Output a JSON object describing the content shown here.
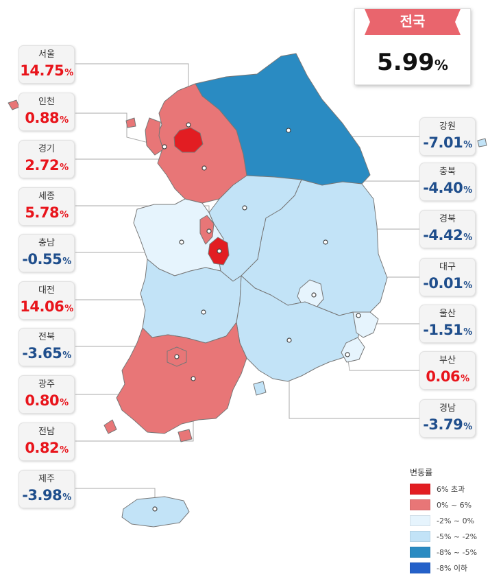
{
  "national": {
    "label": "전국",
    "value": "5.99",
    "unit": "%"
  },
  "colors": {
    "over6": "#e21d22",
    "p0to6": "#e87677",
    "m2to0": "#e6f4fd",
    "m5tom2": "#c2e3f7",
    "m8tom5": "#2a8bc2",
    "under8": "#2461c9",
    "positive_text": "#e8141b",
    "negative_text": "#1f4e8c",
    "ribbon": "#e9656d"
  },
  "regions": [
    {
      "id": "seoul",
      "name": "서울",
      "value": "14.75",
      "unit": "%",
      "sign": "pos"
    },
    {
      "id": "incheon",
      "name": "인천",
      "value": "0.88",
      "unit": "%",
      "sign": "pos"
    },
    {
      "id": "gyeonggi",
      "name": "경기",
      "value": "2.72",
      "unit": "%",
      "sign": "pos"
    },
    {
      "id": "sejong",
      "name": "세종",
      "value": "5.78",
      "unit": "%",
      "sign": "pos"
    },
    {
      "id": "chungnam",
      "name": "충남",
      "value": "-0.55",
      "unit": "%",
      "sign": "neg"
    },
    {
      "id": "daejeon",
      "name": "대전",
      "value": "14.06",
      "unit": "%",
      "sign": "pos"
    },
    {
      "id": "jeonbuk",
      "name": "전북",
      "value": "-3.65",
      "unit": "%",
      "sign": "neg"
    },
    {
      "id": "gwangju",
      "name": "광주",
      "value": "0.80",
      "unit": "%",
      "sign": "pos"
    },
    {
      "id": "jeonnam",
      "name": "전남",
      "value": "0.82",
      "unit": "%",
      "sign": "pos"
    },
    {
      "id": "jeju",
      "name": "제주",
      "value": "-3.98",
      "unit": "%",
      "sign": "neg"
    },
    {
      "id": "gangwon",
      "name": "강원",
      "value": "-7.01",
      "unit": "%",
      "sign": "neg"
    },
    {
      "id": "chungbuk",
      "name": "충북",
      "value": "-4.40",
      "unit": "%",
      "sign": "neg"
    },
    {
      "id": "gyeongbuk",
      "name": "경북",
      "value": "-4.42",
      "unit": "%",
      "sign": "neg"
    },
    {
      "id": "daegu",
      "name": "대구",
      "value": "-0.01",
      "unit": "%",
      "sign": "neg"
    },
    {
      "id": "ulsan",
      "name": "울산",
      "value": "-1.51",
      "unit": "%",
      "sign": "neg"
    },
    {
      "id": "busan",
      "name": "부산",
      "value": "0.06",
      "unit": "%",
      "sign": "pos"
    },
    {
      "id": "gyeongnam",
      "name": "경남",
      "value": "-3.79",
      "unit": "%",
      "sign": "neg"
    }
  ],
  "legend": {
    "title": "변동률",
    "items": [
      {
        "label": "6% 초과",
        "color": "#e21d22"
      },
      {
        "label": "0% ~ 6%",
        "color": "#e87677"
      },
      {
        "label": "-2% ~ 0%",
        "color": "#e6f4fd"
      },
      {
        "label": "-5% ~ -2%",
        "color": "#c2e3f7"
      },
      {
        "label": "-8% ~ -5%",
        "color": "#2a8bc2"
      },
      {
        "label": "-8% 이하",
        "color": "#2461c9"
      }
    ]
  }
}
